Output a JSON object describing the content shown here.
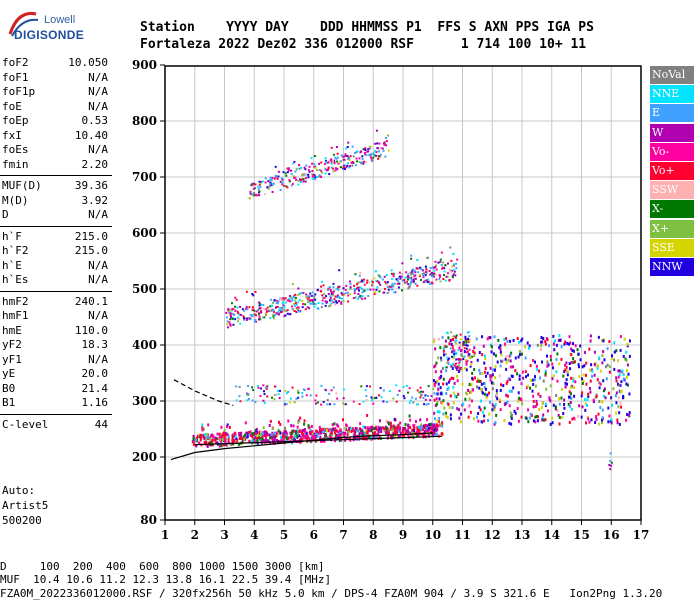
{
  "logo": {
    "line1": "Lowell",
    "line2": "DIGISONDE"
  },
  "header": {
    "line1": "Station    YYYY DAY    DDD HHMMSS P1  FFS S AXN PPS IGA PS",
    "line2": "Fortaleza 2022 Dez02 336 012000 RSF      1 714 100 10+ 11"
  },
  "params": [
    [
      {
        "k": "foF2",
        "v": "10.050"
      },
      {
        "k": "foF1",
        "v": "N/A"
      },
      {
        "k": "foF1p",
        "v": "N/A"
      },
      {
        "k": "foE",
        "v": "N/A"
      },
      {
        "k": "foEp",
        "v": "0.53"
      },
      {
        "k": "fxI",
        "v": "10.40"
      },
      {
        "k": "foEs",
        "v": "N/A"
      },
      {
        "k": "fmin",
        "v": "2.20"
      }
    ],
    [
      {
        "k": "MUF(D)",
        "v": "39.36"
      },
      {
        "k": "M(D)",
        "v": "3.92"
      },
      {
        "k": "D",
        "v": "N/A"
      }
    ],
    [
      {
        "k": "h`F",
        "v": "215.0"
      },
      {
        "k": "h`F2",
        "v": "215.0"
      },
      {
        "k": "h`E",
        "v": "N/A"
      },
      {
        "k": "h`Es",
        "v": "N/A"
      }
    ],
    [
      {
        "k": "hmF2",
        "v": "240.1"
      },
      {
        "k": "hmF1",
        "v": "N/A"
      },
      {
        "k": "hmE",
        "v": "110.0"
      },
      {
        "k": "yF2",
        "v": "18.3"
      },
      {
        "k": "yF1",
        "v": "N/A"
      },
      {
        "k": "yE",
        "v": "20.0"
      },
      {
        "k": "B0",
        "v": "21.4"
      },
      {
        "k": "B1",
        "v": "1.16"
      }
    ],
    [
      {
        "k": "C-level",
        "v": "44"
      }
    ]
  ],
  "auto": {
    "line1": "Auto:",
    "line2": "Artist5",
    "line3": "500200"
  },
  "legend": [
    {
      "label": "NoVal",
      "color": "#808080"
    },
    {
      "label": "NNE",
      "color": "#00e5ff"
    },
    {
      "label": "E",
      "color": "#3fa0ff"
    },
    {
      "label": "W",
      "color": "#b000b0"
    },
    {
      "label": "Vo-",
      "color": "#ff00a0"
    },
    {
      "label": "Vo+",
      "color": "#ff0030"
    },
    {
      "label": "SSW",
      "color": "#ffb0b0"
    },
    {
      "label": "X-",
      "color": "#007800"
    },
    {
      "label": "X+",
      "color": "#80c040"
    },
    {
      "label": "SSE",
      "color": "#d4d400"
    },
    {
      "label": "NNW",
      "color": "#2000e0"
    }
  ],
  "footer": {
    "line1": "D     100  200  400  600  800 1000 1500 3000 [km]",
    "line2": "MUF  10.4 10.6 11.2 12.3 13.8 16.1 22.5 39.4 [MHz]",
    "line3": "FZA0M_2022336012000.RSF / 320fx256h 50 kHz 5.0 km / DPS-4 FZA0M 904 / 3.9 S 321.6 E   Ion2Png 1.3.20"
  },
  "chart_data": {
    "type": "scatter",
    "xlim": [
      1,
      17
    ],
    "ylim": [
      80,
      900
    ],
    "x_ticks": [
      1,
      2,
      3,
      4,
      5,
      6,
      7,
      8,
      9,
      10,
      11,
      12,
      13,
      14,
      15,
      16,
      17
    ],
    "y_ticks": [
      80,
      200,
      300,
      400,
      500,
      600,
      700,
      800,
      900
    ],
    "grid": true,
    "clusters": [
      {
        "name": "F-trace",
        "x": [
          1.9,
          10.3
        ],
        "y_start": [
          220,
          230
        ],
        "y_end": [
          240,
          285
        ],
        "spread": 22,
        "count": 900
      },
      {
        "name": "F-trace-upper",
        "x": [
          10.0,
          16.6
        ],
        "y": [
          260,
          420
        ],
        "count": 700
      },
      {
        "name": "F-2hop-low",
        "x": [
          3.3,
          10.2
        ],
        "y": [
          295,
          330
        ],
        "count": 150
      },
      {
        "name": "F-2hop",
        "x": [
          3.0,
          10.8
        ],
        "y_start": [
          430,
          460
        ],
        "y_end": [
          520,
          560
        ],
        "spread": 35,
        "count": 600
      },
      {
        "name": "F-3hop",
        "x": [
          3.8,
          8.5
        ],
        "y_start": [
          660,
          700
        ],
        "y_end": [
          740,
          770
        ],
        "spread": 30,
        "count": 300
      },
      {
        "name": "scatter-high",
        "x": [
          10.4,
          11.3
        ],
        "y": [
          360,
          430
        ],
        "count": 80
      },
      {
        "name": "column-16",
        "x": [
          15.9,
          16.0
        ],
        "y": [
          150,
          210
        ],
        "count": 6
      }
    ],
    "model_curves": [
      {
        "x": [
          1.2,
          2,
          3,
          4,
          5,
          6,
          7,
          8,
          9,
          10
        ],
        "y": [
          195,
          208,
          215,
          220,
          225,
          230,
          235,
          238,
          240,
          243
        ]
      },
      {
        "x": [
          1.3,
          2,
          2.8,
          3.3
        ],
        "y": [
          338,
          318,
          300,
          292
        ]
      },
      {
        "x": [
          2.0,
          10.3
        ],
        "y": [
          222,
          237
        ]
      }
    ]
  }
}
